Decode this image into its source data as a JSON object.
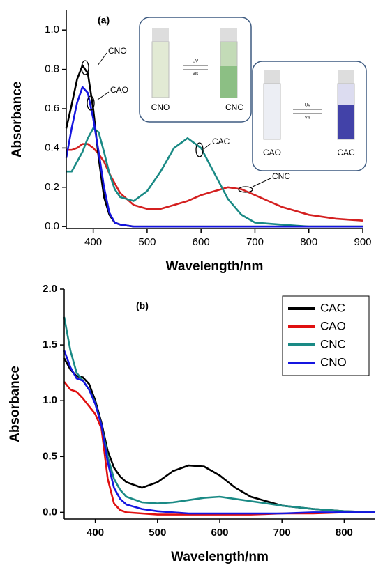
{
  "chart_data": [
    {
      "type": "line",
      "panel_label": "(a)",
      "xlabel": "Wavelength/nm",
      "ylabel": "Absorbance",
      "xlim": [
        350,
        900
      ],
      "ylim": [
        -0.01,
        1.1
      ],
      "xticks": [
        400,
        500,
        600,
        700,
        800,
        900
      ],
      "yticks": [
        {
          "value": 0,
          "label": "0.0"
        },
        {
          "value": 0.2,
          "label": "0.2"
        },
        {
          "value": 0.4,
          "label": "0.4"
        },
        {
          "value": 0.6,
          "label": "0.6"
        },
        {
          "value": 0.8,
          "label": "0.8"
        },
        {
          "value": 1,
          "label": "1.0"
        }
      ],
      "x": [
        350,
        360,
        370,
        380,
        390,
        400,
        410,
        420,
        430,
        440,
        450,
        475,
        500,
        525,
        550,
        575,
        600,
        625,
        650,
        675,
        700,
        750,
        800,
        850,
        900
      ],
      "series": [
        {
          "color": "#d42020",
          "values": [
            0.39,
            0.39,
            0.4,
            0.42,
            0.42,
            0.4,
            0.37,
            0.33,
            0.27,
            0.22,
            0.17,
            0.11,
            0.09,
            0.09,
            0.11,
            0.13,
            0.16,
            0.18,
            0.2,
            0.19,
            0.16,
            0.1,
            0.06,
            0.04,
            0.03
          ]
        },
        {
          "color": "#1a8a85",
          "values": [
            0.28,
            0.28,
            0.33,
            0.38,
            0.45,
            0.5,
            0.48,
            0.38,
            0.27,
            0.19,
            0.15,
            0.13,
            0.18,
            0.28,
            0.4,
            0.45,
            0.4,
            0.27,
            0.14,
            0.06,
            0.02,
            0.01,
            0,
            0,
            0
          ]
        },
        {
          "color": "#000000",
          "values": [
            0.5,
            0.62,
            0.75,
            0.82,
            0.78,
            0.6,
            0.35,
            0.15,
            0.06,
            0.02,
            0.01,
            0,
            0,
            0,
            0,
            0,
            0,
            0,
            0,
            0,
            0,
            0,
            0,
            0,
            0
          ]
        },
        {
          "color": "#1515e0",
          "values": [
            0.35,
            0.5,
            0.63,
            0.71,
            0.68,
            0.55,
            0.38,
            0.2,
            0.07,
            0.02,
            0.01,
            0,
            0,
            0,
            0,
            0,
            0,
            0,
            0,
            0,
            0,
            0,
            0,
            0,
            0
          ]
        }
      ],
      "annotations": [
        "CNO",
        "CAO",
        "CAC",
        "CNC"
      ],
      "insets": [
        {
          "labels": [
            "CNO",
            "CNC"
          ],
          "arrow_labels": [
            "UV",
            "Vis"
          ]
        },
        {
          "labels": [
            "CAO",
            "CAC"
          ],
          "arrow_labels": [
            "UV",
            "Vis"
          ]
        }
      ]
    },
    {
      "type": "line",
      "panel_label": "(b)",
      "xlabel": "Wavelength/nm",
      "ylabel": "Absorbance",
      "xlim": [
        350,
        850
      ],
      "ylim": [
        -0.06,
        2.0
      ],
      "xticks": [
        400,
        500,
        600,
        700,
        800
      ],
      "yticks": [
        {
          "value": 0,
          "label": "0.0"
        },
        {
          "value": 0.5,
          "label": "0.5"
        },
        {
          "value": 1,
          "label": "1.0"
        },
        {
          "value": 1.5,
          "label": "1.5"
        },
        {
          "value": 2,
          "label": "2.0"
        }
      ],
      "legend": "upper right",
      "x": [
        350,
        360,
        370,
        380,
        390,
        400,
        410,
        420,
        430,
        440,
        450,
        475,
        500,
        525,
        550,
        575,
        600,
        625,
        650,
        700,
        750,
        800,
        850
      ],
      "series": [
        {
          "name": "CAC",
          "color": "#000000",
          "values": [
            1.38,
            1.28,
            1.22,
            1.21,
            1.15,
            1.0,
            0.8,
            0.55,
            0.4,
            0.32,
            0.27,
            0.22,
            0.27,
            0.37,
            0.42,
            0.41,
            0.33,
            0.22,
            0.14,
            0.06,
            0.03,
            0.01,
            0
          ]
        },
        {
          "name": "CAO",
          "color": "#e01010",
          "values": [
            1.17,
            1.1,
            1.08,
            1.02,
            0.95,
            0.88,
            0.75,
            0.3,
            0.08,
            0.02,
            0,
            -0.01,
            -0.02,
            -0.02,
            -0.02,
            -0.02,
            -0.02,
            -0.02,
            -0.02,
            -0.01,
            -0.01,
            0,
            0
          ]
        },
        {
          "name": "CNC",
          "color": "#1a8a85",
          "values": [
            1.75,
            1.45,
            1.25,
            1.18,
            1.1,
            0.98,
            0.78,
            0.5,
            0.3,
            0.2,
            0.14,
            0.09,
            0.08,
            0.09,
            0.11,
            0.13,
            0.14,
            0.12,
            0.1,
            0.06,
            0.03,
            0.01,
            0
          ]
        },
        {
          "name": "CNO",
          "color": "#1515e0",
          "values": [
            1.45,
            1.3,
            1.2,
            1.18,
            1.1,
            0.97,
            0.78,
            0.45,
            0.22,
            0.12,
            0.07,
            0.03,
            0.01,
            0,
            -0.01,
            -0.01,
            -0.01,
            -0.01,
            -0.01,
            -0.01,
            0,
            0,
            0
          ]
        }
      ]
    }
  ]
}
